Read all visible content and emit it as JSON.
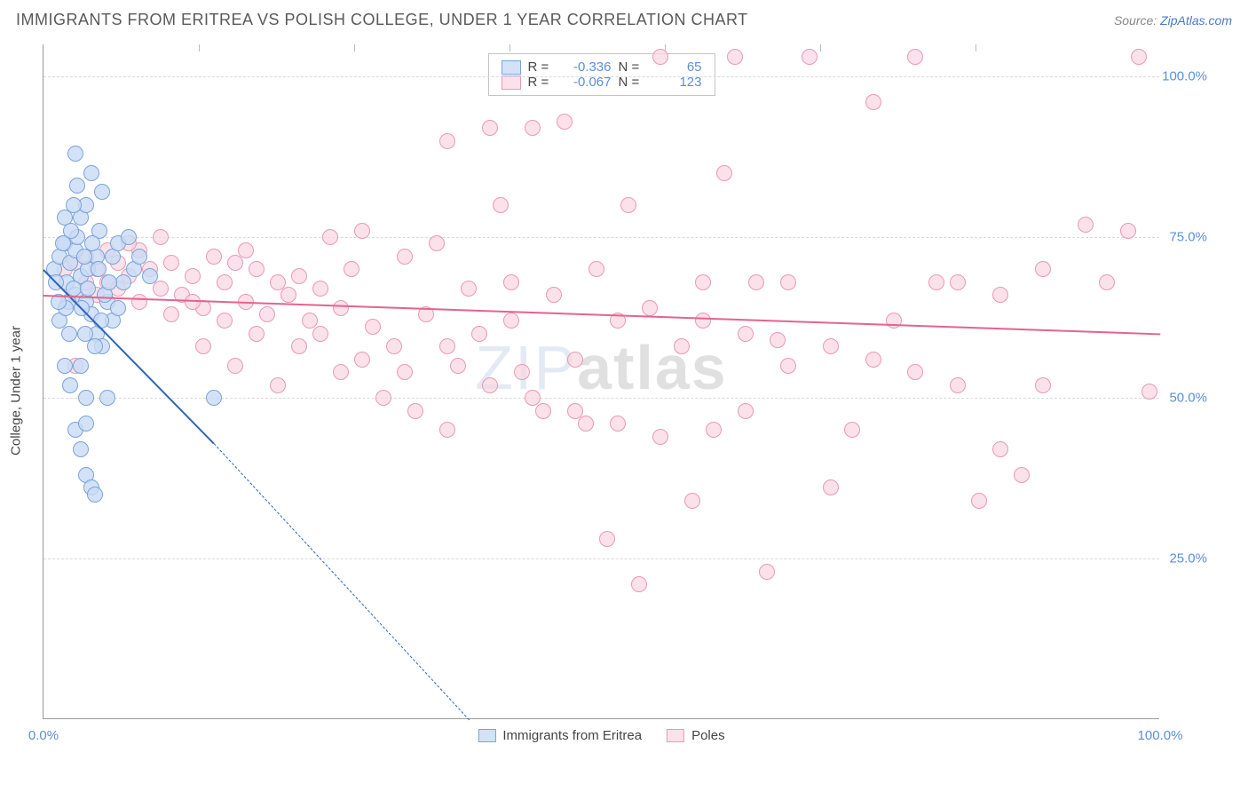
{
  "title": "IMMIGRANTS FROM ERITREA VS POLISH COLLEGE, UNDER 1 YEAR CORRELATION CHART",
  "source_prefix": "Source: ",
  "source_link": "ZipAtlas.com",
  "ylabel": "College, Under 1 year",
  "watermark_light": "ZIP",
  "watermark_bold": "atlas",
  "chart": {
    "type": "scatter",
    "xlim": [
      0,
      105
    ],
    "ylim": [
      0,
      105
    ],
    "yticks": [
      25,
      50,
      75,
      100
    ],
    "ytick_labels": [
      "25.0%",
      "50.0%",
      "75.0%",
      "100.0%"
    ],
    "xticks_inner": [
      14.6,
      29.2,
      43.8,
      58.4,
      73.0,
      87.6
    ],
    "xtick_labels": {
      "left": "0.0%",
      "right": "100.0%"
    },
    "grid_color": "#d9d9d9",
    "background_color": "#ffffff",
    "axis_color": "#999999",
    "tick_label_color": "#5b8fd6",
    "marker_radius": 9,
    "marker_radius_large": 13,
    "series": {
      "eritrea": {
        "label": "Immigrants from Eritrea",
        "fill": "#c8dbf5cc",
        "stroke": "#7ba3d9",
        "line_color": "#2e66b8",
        "R": "-0.336",
        "N": "65",
        "regression": {
          "x1": 0,
          "y1": 70,
          "x2_solid": 16,
          "y2_solid": 43,
          "x2_dash": 40,
          "y2_dash": 0
        },
        "points": [
          [
            1,
            70
          ],
          [
            1.5,
            72
          ],
          [
            2,
            74
          ],
          [
            2.2,
            68
          ],
          [
            2.5,
            71
          ],
          [
            3,
            73
          ],
          [
            3,
            66
          ],
          [
            3.2,
            75
          ],
          [
            3.5,
            69
          ],
          [
            3.5,
            78
          ],
          [
            4,
            80
          ],
          [
            4,
            65
          ],
          [
            4.2,
            70
          ],
          [
            4.5,
            85
          ],
          [
            4.5,
            63
          ],
          [
            5,
            72
          ],
          [
            5,
            60
          ],
          [
            5.3,
            76
          ],
          [
            5.5,
            82
          ],
          [
            5.5,
            58
          ],
          [
            2,
            55
          ],
          [
            2.5,
            52
          ],
          [
            3.5,
            55
          ],
          [
            4,
            50
          ],
          [
            6,
            50
          ],
          [
            6.5,
            72
          ],
          [
            7,
            74
          ],
          [
            7.5,
            68
          ],
          [
            8,
            75
          ],
          [
            8.5,
            70
          ],
          [
            3,
            45
          ],
          [
            3.5,
            42
          ],
          [
            4,
            46
          ],
          [
            4,
            38
          ],
          [
            4.5,
            36
          ],
          [
            4.8,
            35
          ],
          [
            1.5,
            62
          ],
          [
            2,
            78
          ],
          [
            2.8,
            80
          ],
          [
            3.2,
            83
          ],
          [
            9,
            72
          ],
          [
            10,
            69
          ],
          [
            6,
            65
          ],
          [
            6.5,
            62
          ],
          [
            7,
            64
          ],
          [
            2.3,
            65
          ],
          [
            2.8,
            67
          ],
          [
            3.6,
            64
          ],
          [
            4.2,
            67
          ],
          [
            5.8,
            66
          ],
          [
            1.8,
            74
          ],
          [
            1.2,
            68
          ],
          [
            2.6,
            76
          ],
          [
            3.8,
            72
          ],
          [
            4.6,
            74
          ],
          [
            5.2,
            70
          ],
          [
            6.2,
            68
          ],
          [
            16,
            50
          ],
          [
            3,
            88
          ],
          [
            2.4,
            60
          ],
          [
            4.8,
            58
          ],
          [
            5.4,
            62
          ],
          [
            3.9,
            60
          ],
          [
            2.1,
            64
          ],
          [
            1.4,
            65
          ]
        ]
      },
      "poles": {
        "label": "Poles",
        "fill": "#f9d4dfb3",
        "stroke": "#e99ab4",
        "line_color": "#e5628f",
        "R": "-0.067",
        "N": "123",
        "regression": {
          "x1": 0,
          "y1": 66,
          "x2": 105,
          "y2": 60
        },
        "points": [
          [
            2,
            70
          ],
          [
            3,
            71
          ],
          [
            4,
            72
          ],
          [
            5,
            70
          ],
          [
            6,
            68
          ],
          [
            7,
            71
          ],
          [
            8,
            69
          ],
          [
            9,
            73
          ],
          [
            10,
            70
          ],
          [
            11,
            67
          ],
          [
            12,
            71
          ],
          [
            13,
            66
          ],
          [
            14,
            69
          ],
          [
            15,
            64
          ],
          [
            16,
            72
          ],
          [
            17,
            68
          ],
          [
            18,
            71
          ],
          [
            19,
            65
          ],
          [
            20,
            70
          ],
          [
            21,
            63
          ],
          [
            22,
            68
          ],
          [
            23,
            66
          ],
          [
            24,
            69
          ],
          [
            25,
            62
          ],
          [
            26,
            67
          ],
          [
            27,
            75
          ],
          [
            28,
            64
          ],
          [
            29,
            70
          ],
          [
            30,
            76
          ],
          [
            31,
            61
          ],
          [
            33,
            58
          ],
          [
            34,
            72
          ],
          [
            35,
            48
          ],
          [
            36,
            63
          ],
          [
            37,
            74
          ],
          [
            38,
            90
          ],
          [
            39,
            55
          ],
          [
            40,
            67
          ],
          [
            41,
            60
          ],
          [
            42,
            92
          ],
          [
            43,
            80
          ],
          [
            44,
            68
          ],
          [
            45,
            54
          ],
          [
            46,
            92
          ],
          [
            47,
            48
          ],
          [
            48,
            66
          ],
          [
            49,
            93
          ],
          [
            50,
            56
          ],
          [
            51,
            46
          ],
          [
            52,
            70
          ],
          [
            53,
            28
          ],
          [
            54,
            62
          ],
          [
            55,
            80
          ],
          [
            56,
            21
          ],
          [
            57,
            64
          ],
          [
            58,
            103
          ],
          [
            60,
            58
          ],
          [
            61,
            34
          ],
          [
            62,
            68
          ],
          [
            63,
            45
          ],
          [
            64,
            85
          ],
          [
            65,
            103
          ],
          [
            66,
            48
          ],
          [
            67,
            68
          ],
          [
            68,
            23
          ],
          [
            69,
            59
          ],
          [
            70,
            55
          ],
          [
            72,
            103
          ],
          [
            74,
            36
          ],
          [
            76,
            45
          ],
          [
            78,
            96
          ],
          [
            80,
            62
          ],
          [
            82,
            103
          ],
          [
            84,
            68
          ],
          [
            86,
            52
          ],
          [
            88,
            34
          ],
          [
            90,
            42
          ],
          [
            92,
            38
          ],
          [
            94,
            70
          ],
          [
            98,
            77
          ],
          [
            100,
            68
          ],
          [
            102,
            76
          ],
          [
            103,
            103
          ],
          [
            104,
            51
          ],
          [
            15,
            58
          ],
          [
            18,
            55
          ],
          [
            22,
            52
          ],
          [
            28,
            54
          ],
          [
            32,
            50
          ],
          [
            38,
            45
          ],
          [
            44,
            62
          ],
          [
            19,
            73
          ],
          [
            8,
            74
          ],
          [
            11,
            75
          ],
          [
            6,
            73
          ],
          [
            3,
            55
          ],
          [
            4,
            68
          ],
          [
            5,
            66
          ],
          [
            7,
            67
          ],
          [
            9,
            65
          ],
          [
            12,
            63
          ],
          [
            14,
            65
          ],
          [
            17,
            62
          ],
          [
            20,
            60
          ],
          [
            24,
            58
          ],
          [
            26,
            60
          ],
          [
            30,
            56
          ],
          [
            34,
            54
          ],
          [
            38,
            58
          ],
          [
            42,
            52
          ],
          [
            46,
            50
          ],
          [
            50,
            48
          ],
          [
            54,
            46
          ],
          [
            58,
            44
          ],
          [
            62,
            62
          ],
          [
            66,
            60
          ],
          [
            70,
            68
          ],
          [
            74,
            58
          ],
          [
            78,
            56
          ],
          [
            82,
            54
          ],
          [
            86,
            68
          ],
          [
            90,
            66
          ],
          [
            94,
            52
          ]
        ]
      }
    }
  }
}
